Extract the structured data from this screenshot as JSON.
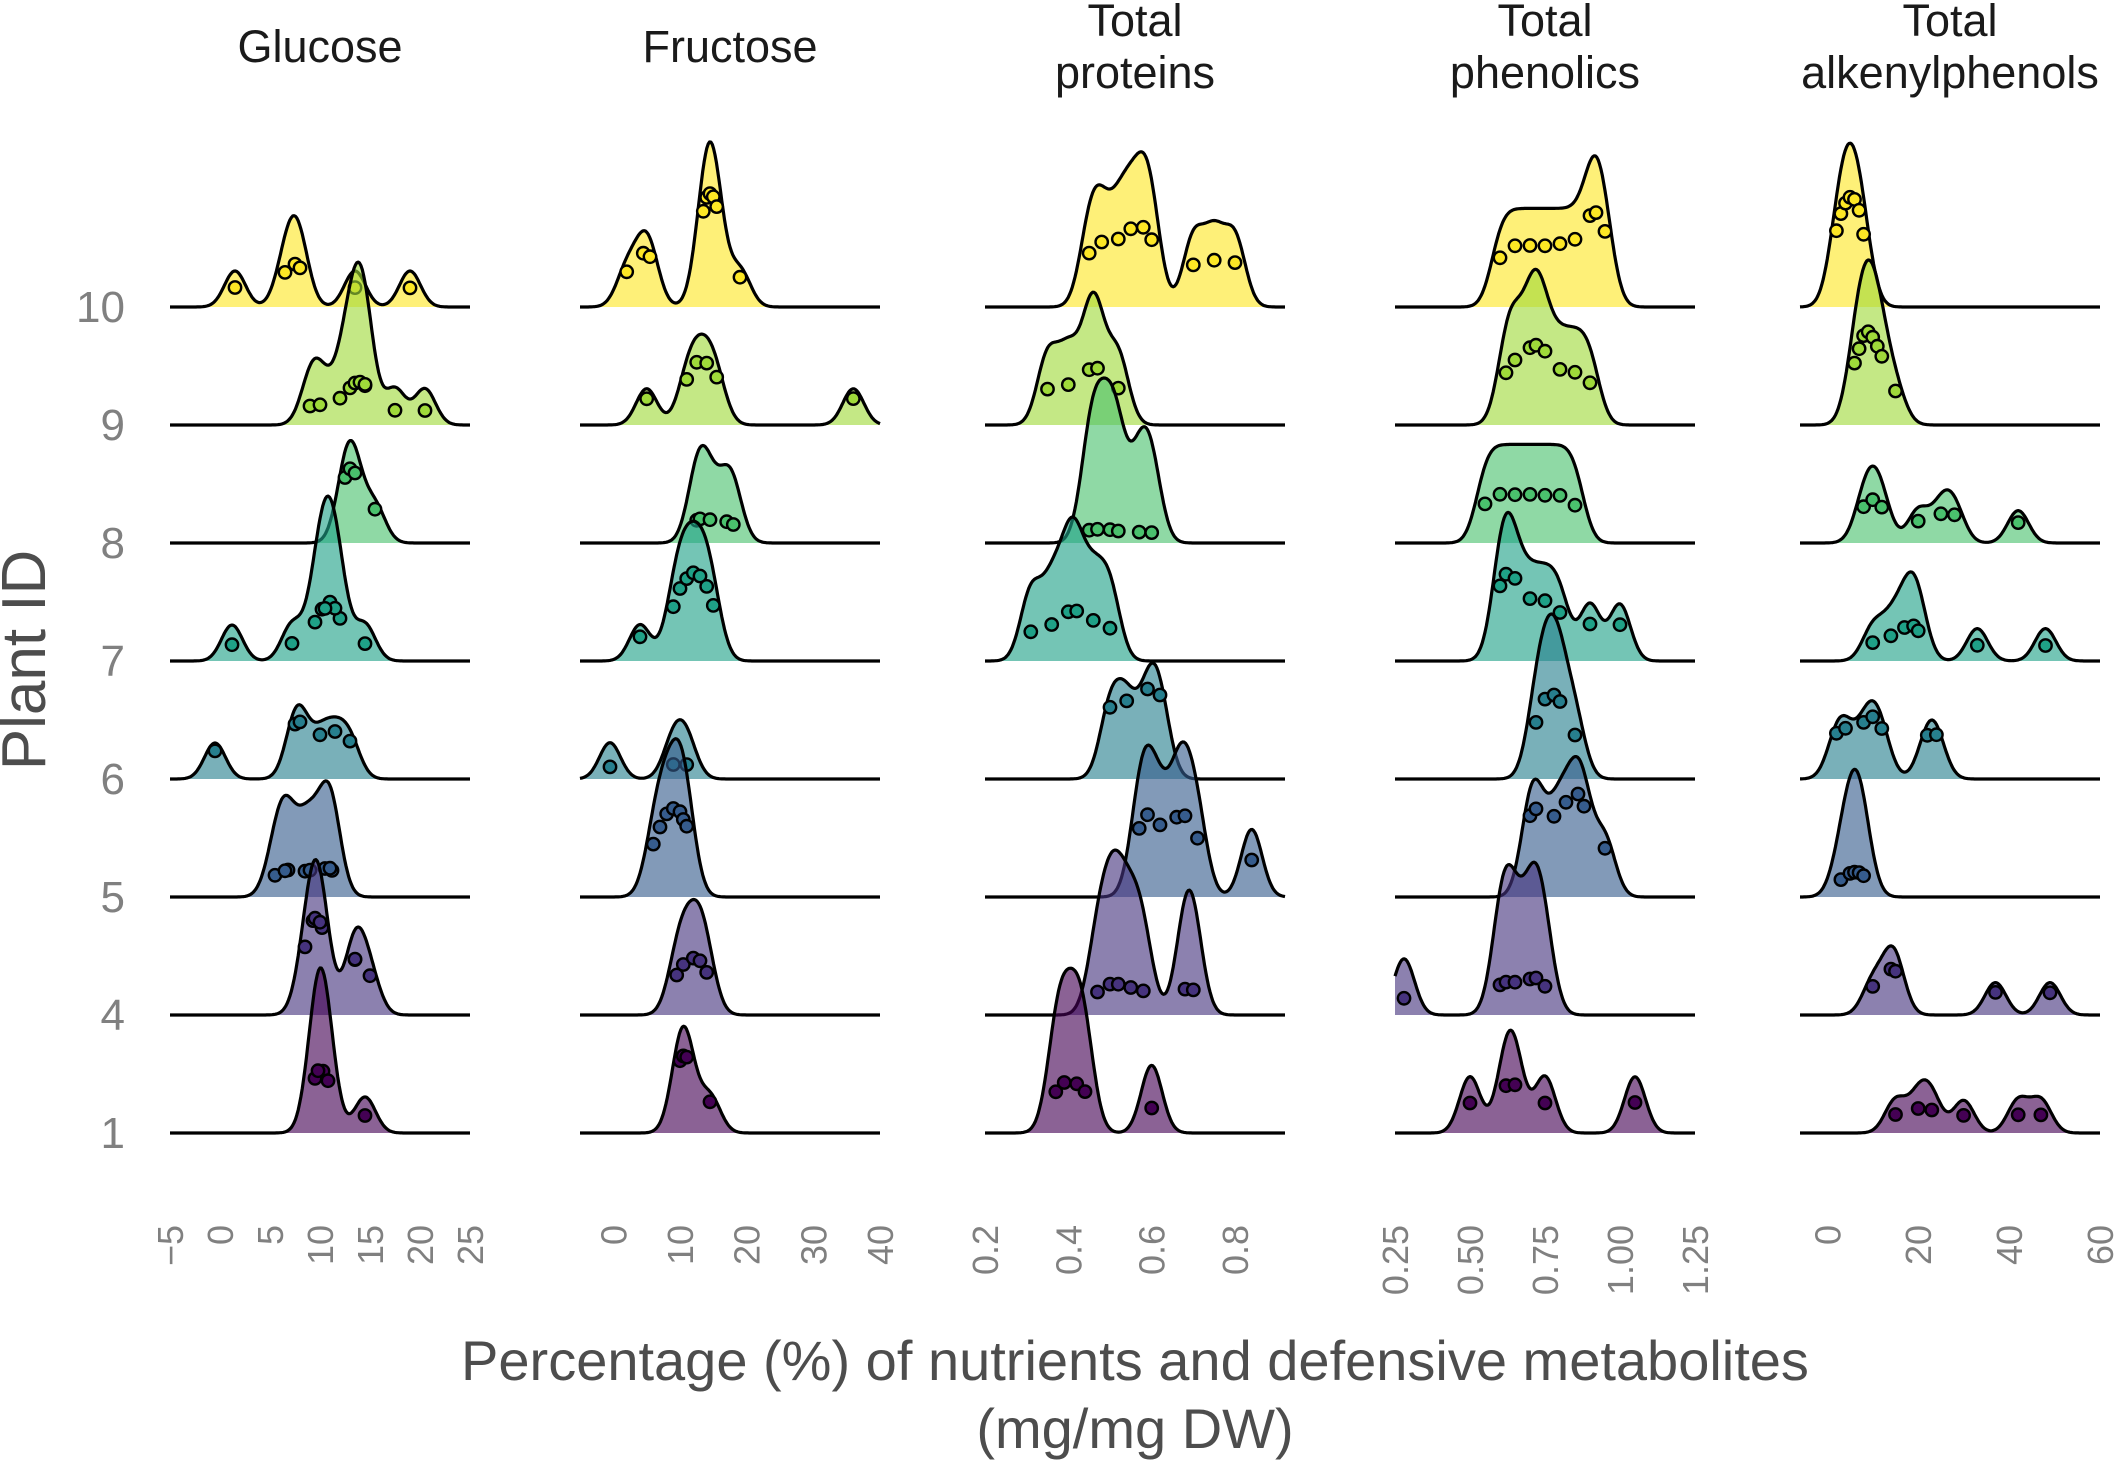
{
  "chart_data": {
    "type": "ridgeline",
    "ylabel": "Plant ID",
    "xlabel_line1": "Percentage (%) of nutrients and defensive metabolites",
    "xlabel_line2": "(mg/mg DW)",
    "plants": [
      "1",
      "4",
      "5",
      "6",
      "7",
      "8",
      "9",
      "10"
    ],
    "plant_colors": {
      "1": "#440154",
      "4": "#46337E",
      "5": "#365C8D",
      "6": "#277F8E",
      "7": "#1FA187",
      "8": "#4AC16D",
      "9": "#9FDA3A",
      "10": "#FDE725"
    },
    "panels": [
      {
        "title_lines": [
          "Glucose"
        ],
        "xlim": [
          -5,
          25
        ],
        "ticks": [
          -5,
          0,
          5,
          10,
          15,
          20,
          25
        ],
        "tick_labels": [
          "−5",
          "0",
          "5",
          "10",
          "15",
          "20",
          "25"
        ],
        "series": [
          {
            "plant": "1",
            "values": [
              10,
              9.5,
              10.3,
              9.8,
              10.8,
              14.5
            ]
          },
          {
            "plant": "4",
            "values": [
              8.5,
              9.3,
              10.2,
              9.5,
              13.5,
              15,
              13.5,
              10
            ]
          },
          {
            "plant": "5",
            "values": [
              5.5,
              6.8,
              8.5,
              9,
              10.5,
              11.2,
              6.5,
              11
            ]
          },
          {
            "plant": "6",
            "values": [
              -0.5,
              7.5,
              8,
              10,
              11.5,
              13
            ]
          },
          {
            "plant": "7",
            "values": [
              1.2,
              7.2,
              9.5,
              10.2,
              11,
              12,
              14.5,
              11.5,
              10.5
            ]
          },
          {
            "plant": "8",
            "values": [
              12.5,
              13,
              15.5,
              13.5
            ]
          },
          {
            "plant": "9",
            "values": [
              9,
              10,
              13,
              13.5,
              14,
              12,
              14.5,
              17.5,
              20.5,
              14.5
            ]
          },
          {
            "plant": "10",
            "values": [
              1.5,
              6.5,
              7.5,
              13.5,
              19,
              8
            ]
          }
        ]
      },
      {
        "title_lines": [
          "Fructose"
        ],
        "xlim": [
          -5,
          40
        ],
        "ticks": [
          0,
          10,
          20,
          30,
          40
        ],
        "tick_labels": [
          "0",
          "10",
          "20",
          "30",
          "40"
        ],
        "series": [
          {
            "plant": "1",
            "values": [
              10,
              10.5,
              14.5,
              11
            ]
          },
          {
            "plant": "4",
            "values": [
              9.5,
              10.5,
              14,
              12,
              13
            ]
          },
          {
            "plant": "5",
            "values": [
              6,
              7,
              8,
              9,
              10,
              10.5,
              11
            ]
          },
          {
            "plant": "6",
            "values": [
              -0.5,
              9,
              11
            ]
          },
          {
            "plant": "7",
            "values": [
              4,
              9,
              10,
              11,
              12,
              13,
              14,
              15
            ]
          },
          {
            "plant": "8",
            "values": [
              12.5,
              13,
              14.5,
              17,
              18
            ]
          },
          {
            "plant": "9",
            "values": [
              5,
              11,
              12.5,
              14,
              15.5,
              36
            ]
          },
          {
            "plant": "10",
            "values": [
              2,
              4.5,
              5.5,
              13.5,
              14,
              14.5,
              15,
              15.5,
              19
            ]
          }
        ]
      },
      {
        "title_lines": [
          "Total",
          "proteins"
        ],
        "xlim": [
          0.2,
          0.92
        ],
        "ticks": [
          0.2,
          0.4,
          0.6,
          0.8
        ],
        "tick_labels": [
          "0.2",
          "0.4",
          "0.6",
          "0.8"
        ],
        "series": [
          {
            "plant": "1",
            "values": [
              0.37,
              0.39,
              0.42,
              0.44,
              0.6
            ]
          },
          {
            "plant": "4",
            "values": [
              0.47,
              0.5,
              0.52,
              0.55,
              0.58,
              0.68,
              0.7
            ]
          },
          {
            "plant": "5",
            "values": [
              0.57,
              0.59,
              0.62,
              0.66,
              0.68,
              0.71,
              0.84
            ]
          },
          {
            "plant": "6",
            "values": [
              0.5,
              0.54,
              0.59,
              0.62
            ]
          },
          {
            "plant": "7",
            "values": [
              0.31,
              0.36,
              0.4,
              0.42,
              0.46,
              0.5
            ]
          },
          {
            "plant": "8",
            "values": [
              0.45,
              0.47,
              0.5,
              0.52,
              0.57,
              0.6
            ]
          },
          {
            "plant": "9",
            "values": [
              0.35,
              0.4,
              0.45,
              0.47,
              0.52
            ]
          },
          {
            "plant": "10",
            "values": [
              0.45,
              0.48,
              0.52,
              0.55,
              0.58,
              0.6,
              0.7,
              0.75,
              0.8
            ]
          }
        ]
      },
      {
        "title_lines": [
          "Total",
          "phenolics"
        ],
        "xlim": [
          0.25,
          1.25
        ],
        "ticks": [
          0.25,
          0.5,
          0.75,
          1.0,
          1.25
        ],
        "tick_labels": [
          "0.25",
          "0.50",
          "0.75",
          "1.00",
          "1.25"
        ],
        "series": [
          {
            "plant": "1",
            "values": [
              0.5,
              0.62,
              0.65,
              0.75,
              1.05
            ]
          },
          {
            "plant": "4",
            "values": [
              0.28,
              0.6,
              0.62,
              0.65,
              0.7,
              0.72,
              0.75
            ]
          },
          {
            "plant": "5",
            "values": [
              0.7,
              0.72,
              0.78,
              0.82,
              0.86,
              0.88,
              0.95
            ]
          },
          {
            "plant": "6",
            "values": [
              0.72,
              0.75,
              0.78,
              0.8,
              0.85
            ]
          },
          {
            "plant": "7",
            "values": [
              0.6,
              0.62,
              0.65,
              0.7,
              0.75,
              0.8,
              0.9,
              1.0
            ]
          },
          {
            "plant": "8",
            "values": [
              0.55,
              0.6,
              0.65,
              0.7,
              0.75,
              0.8,
              0.85
            ]
          },
          {
            "plant": "9",
            "values": [
              0.62,
              0.65,
              0.7,
              0.72,
              0.75,
              0.8,
              0.85,
              0.9
            ]
          },
          {
            "plant": "10",
            "values": [
              0.6,
              0.65,
              0.7,
              0.75,
              0.8,
              0.85,
              0.9,
              0.92,
              0.95
            ]
          }
        ]
      },
      {
        "title_lines": [
          "Total",
          "alkenylphenols"
        ],
        "xlim": [
          -6,
          60
        ],
        "ticks": [
          0,
          20,
          40,
          60
        ],
        "tick_labels": [
          "0",
          "20",
          "40",
          "60"
        ],
        "series": [
          {
            "plant": "1",
            "values": [
              15,
              20,
              23,
              30,
              42,
              47
            ]
          },
          {
            "plant": "4",
            "values": [
              10,
              14,
              15,
              37,
              49
            ]
          },
          {
            "plant": "5",
            "values": [
              3,
              5,
              6,
              7,
              8
            ]
          },
          {
            "plant": "6",
            "values": [
              2,
              4,
              8,
              10,
              12,
              22,
              24
            ]
          },
          {
            "plant": "7",
            "values": [
              10,
              14,
              17,
              19,
              20,
              33,
              48
            ]
          },
          {
            "plant": "8",
            "values": [
              8,
              10,
              12,
              20,
              25,
              28,
              42
            ]
          },
          {
            "plant": "9",
            "values": [
              6,
              7,
              8,
              9,
              10,
              11,
              12,
              15
            ]
          },
          {
            "plant": "10",
            "values": [
              2,
              3,
              4,
              5,
              6,
              7,
              8
            ]
          }
        ]
      }
    ]
  }
}
